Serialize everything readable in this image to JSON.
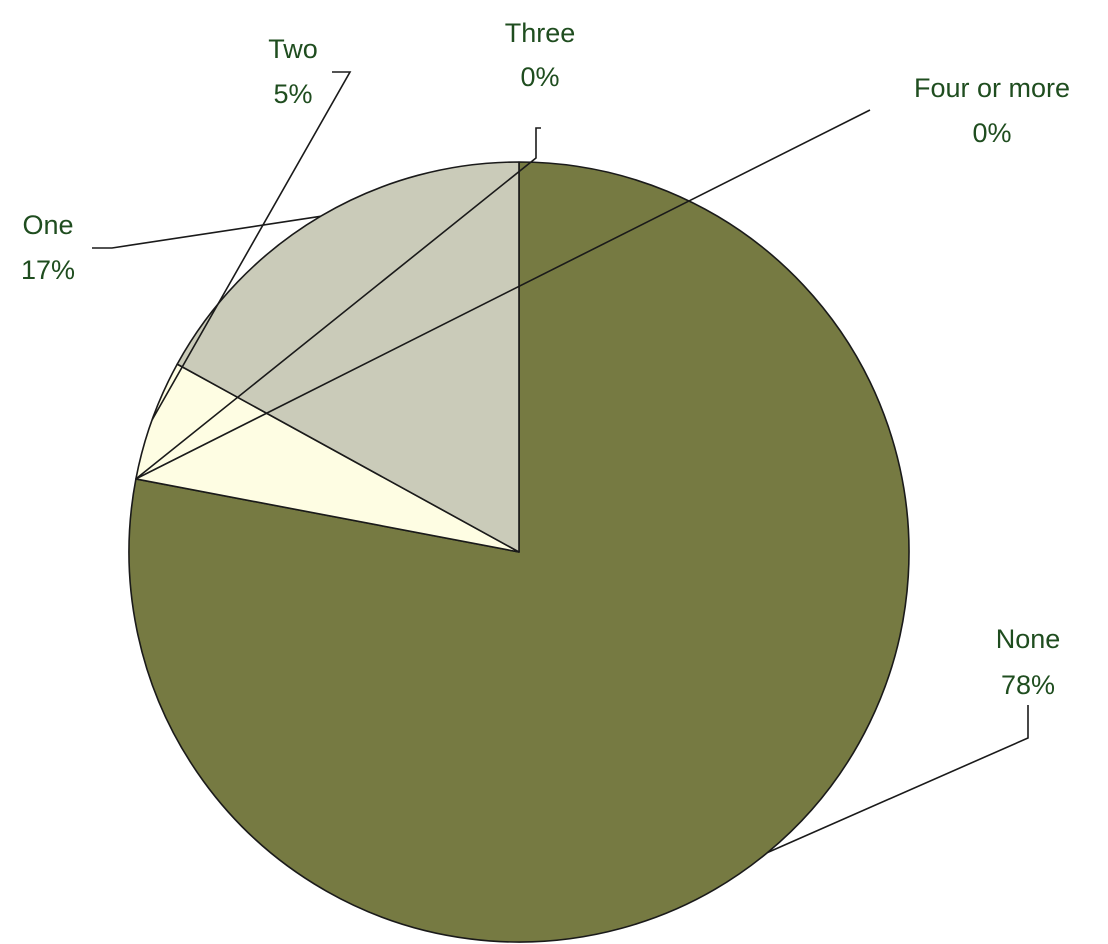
{
  "chart_data": {
    "type": "pie",
    "start": "top",
    "direction": "clockwise",
    "slices": [
      {
        "label": "None",
        "value": 78,
        "percent_label": "78%",
        "color": "#767a42"
      },
      {
        "label": "Four or more",
        "value": 0,
        "percent_label": "0%",
        "color": "#767a42"
      },
      {
        "label": "Three",
        "value": 0,
        "percent_label": "0%",
        "color": "#fefde3"
      },
      {
        "label": "Two",
        "value": 5,
        "percent_label": "5%",
        "color": "#fefde3"
      },
      {
        "label": "One",
        "value": 17,
        "percent_label": "17%",
        "color": "#cacbb9"
      }
    ]
  }
}
